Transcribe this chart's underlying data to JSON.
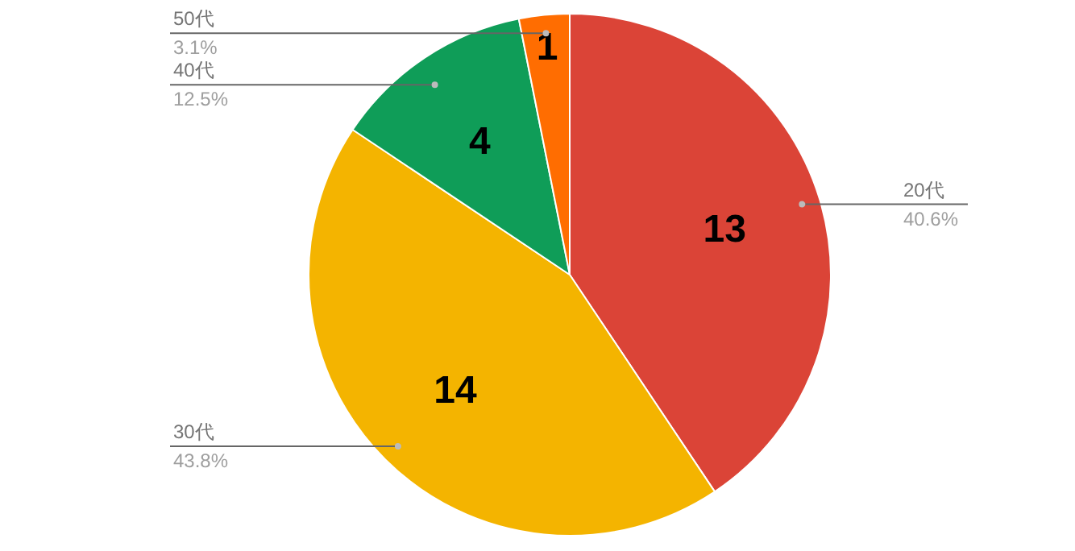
{
  "chart_data": {
    "type": "pie",
    "categories": [
      "20代",
      "30代",
      "40代",
      "50代"
    ],
    "values": [
      13,
      14,
      4,
      1
    ],
    "colors": [
      "#db4437",
      "#f4b400",
      "#0f9d58",
      "#ff6d01"
    ],
    "data_labels": true,
    "annotations": [
      {
        "text": "40.6%",
        "x": "20代"
      },
      {
        "text": "43.8%",
        "x": "30代"
      },
      {
        "text": "12.5%",
        "x": "40代"
      },
      {
        "text": "3.1%",
        "x": "50代"
      }
    ]
  }
}
